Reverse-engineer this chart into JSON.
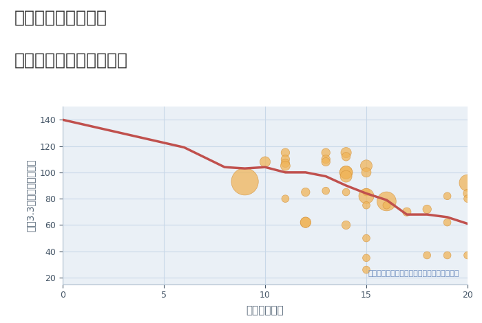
{
  "title_line1": "愛知県清須市廻間の",
  "title_line2": "駅距離別中古戸建て価格",
  "xlabel": "駅距離（分）",
  "ylabel": "坪（3.3㎡）単価（万円）",
  "annotation": "円の大きさは、取引のあった物件面積を示す",
  "xlim": [
    0,
    20
  ],
  "ylim": [
    15,
    150
  ],
  "yticks": [
    20,
    40,
    60,
    80,
    100,
    120,
    140
  ],
  "xticks": [
    0,
    5,
    10,
    15,
    20
  ],
  "trend_x": [
    0,
    2,
    4,
    6,
    8,
    9,
    10,
    11,
    12,
    13,
    14,
    15,
    16,
    17,
    18,
    19,
    20
  ],
  "trend_y": [
    140,
    133,
    126,
    119,
    104,
    103,
    104,
    100,
    100,
    97,
    90,
    84,
    79,
    68,
    68,
    66,
    61
  ],
  "scatter_x": [
    9,
    10,
    11,
    11,
    11,
    11,
    11,
    12,
    12,
    12,
    13,
    13,
    13,
    13,
    14,
    14,
    14,
    14,
    14,
    14,
    14,
    15,
    15,
    15,
    15,
    15,
    15,
    15,
    15,
    16,
    16,
    17,
    18,
    18,
    19,
    19,
    19,
    20,
    20,
    20,
    20
  ],
  "scatter_y": [
    93,
    108,
    115,
    110,
    107,
    80,
    105,
    85,
    62,
    62,
    115,
    110,
    108,
    86,
    115,
    112,
    100,
    100,
    97,
    85,
    60,
    105,
    100,
    85,
    82,
    75,
    26,
    35,
    50,
    78,
    75,
    70,
    72,
    37,
    82,
    62,
    37,
    92,
    84,
    80,
    37
  ],
  "scatter_size": [
    800,
    120,
    80,
    80,
    80,
    60,
    100,
    80,
    120,
    120,
    80,
    80,
    80,
    60,
    120,
    80,
    180,
    180,
    150,
    60,
    80,
    150,
    100,
    60,
    250,
    60,
    60,
    60,
    60,
    400,
    60,
    80,
    80,
    60,
    60,
    60,
    60,
    300,
    80,
    60,
    60
  ],
  "scatter_color": "#F0B55A",
  "scatter_edge_color": "#D4923A",
  "scatter_alpha": 0.75,
  "trend_color": "#C0504D",
  "trend_linewidth": 2.5,
  "background_color": "#FFFFFF",
  "plot_bg_color": "#EAF0F6",
  "grid_color": "#C8D8E8",
  "title_color": "#333333",
  "axis_label_color": "#556677",
  "tick_color": "#445566",
  "annotation_color": "#7090C0"
}
